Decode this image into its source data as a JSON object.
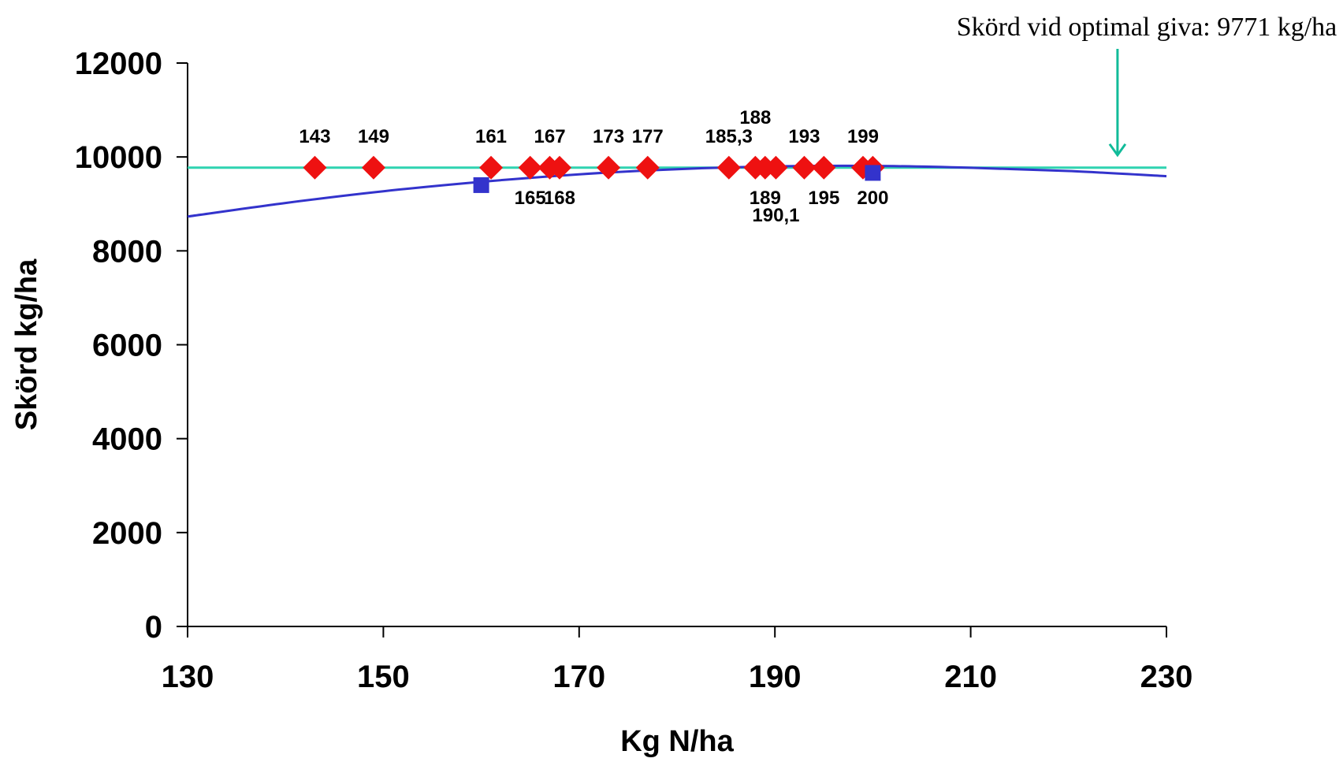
{
  "colors": {
    "axis": "#000000",
    "optimal_line": "#2fd3b0",
    "trend_curve": "#3333cc",
    "diamond": "#ee1111",
    "square": "#3333cc",
    "annotation_arrow": "#11bb99"
  },
  "chart_data": {
    "type": "scatter",
    "title": "",
    "xlabel": "Kg N/ha",
    "ylabel": "Skörd kg/ha",
    "xlim": [
      130,
      230
    ],
    "ylim": [
      0,
      12000
    ],
    "x_ticks": [
      130,
      150,
      170,
      190,
      210,
      230
    ],
    "y_ticks": [
      0,
      2000,
      4000,
      6000,
      8000,
      10000,
      12000
    ],
    "x_tick_labels": [
      "130",
      "150",
      "170",
      "190",
      "210",
      "230"
    ],
    "y_tick_labels": [
      "0",
      "2000",
      "4000",
      "6000",
      "8000",
      "10000",
      "12000"
    ],
    "grid": false,
    "optimal_yield_line": {
      "y": 9771
    },
    "annotation": {
      "text": "Skörd vid optimal giva: 9771 kg/ha",
      "x": 225,
      "y": 9771
    },
    "trend_curve": {
      "x": [
        130,
        140,
        150,
        160,
        170,
        180,
        190,
        200,
        210,
        220,
        230
      ],
      "y": [
        8730,
        9020,
        9270,
        9470,
        9630,
        9740,
        9800,
        9810,
        9770,
        9700,
        9590
      ]
    },
    "series": [
      {
        "marker": "diamond",
        "points": [
          {
            "x": 143,
            "y": 9771,
            "label": "143",
            "label_pos": "above"
          },
          {
            "x": 149,
            "y": 9771,
            "label": "149",
            "label_pos": "above"
          },
          {
            "x": 161,
            "y": 9771,
            "label": "161",
            "label_pos": "above"
          },
          {
            "x": 165,
            "y": 9771,
            "label": "165",
            "label_pos": "below"
          },
          {
            "x": 167,
            "y": 9771,
            "label": "167",
            "label_pos": "above"
          },
          {
            "x": 168,
            "y": 9771,
            "label": "168",
            "label_pos": "below"
          },
          {
            "x": 173,
            "y": 9771,
            "label": "173",
            "label_pos": "above"
          },
          {
            "x": 177,
            "y": 9771,
            "label": "177",
            "label_pos": "above"
          },
          {
            "x": 185.3,
            "y": 9771,
            "label": "185,3",
            "label_pos": "above"
          },
          {
            "x": 188,
            "y": 9771,
            "label": "188",
            "label_pos": "high"
          },
          {
            "x": 189,
            "y": 9771,
            "label": "189",
            "label_pos": "below"
          },
          {
            "x": 190.1,
            "y": 9771,
            "label": "190,1",
            "label_pos": "low"
          },
          {
            "x": 193,
            "y": 9771,
            "label": "193",
            "label_pos": "above"
          },
          {
            "x": 195,
            "y": 9771,
            "label": "195",
            "label_pos": "below"
          },
          {
            "x": 199,
            "y": 9771,
            "label": "199",
            "label_pos": "above"
          },
          {
            "x": 200,
            "y": 9771,
            "label": "200",
            "label_pos": "below"
          }
        ]
      },
      {
        "marker": "square",
        "points": [
          {
            "x": 160,
            "y": 9400
          },
          {
            "x": 200,
            "y": 9660
          }
        ]
      }
    ]
  }
}
